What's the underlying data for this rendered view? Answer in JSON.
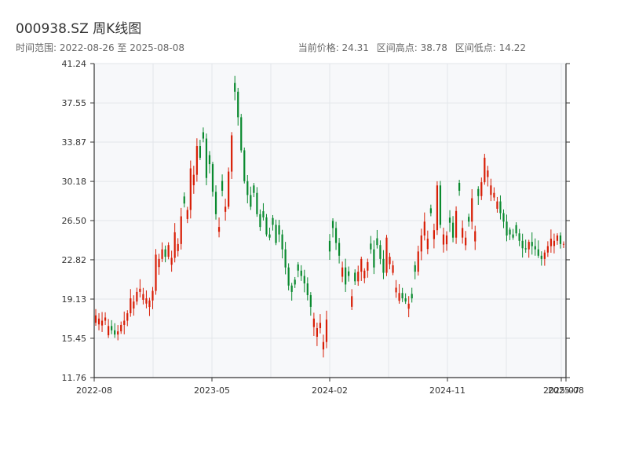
{
  "header": {
    "title": "000938.SZ 周K线图",
    "subtitle": "时间范围: 2022-08-26 至 2025-08-08",
    "current_price": "当前价格: 24.31",
    "high": "区间高点: 38.78",
    "low": "区间低点: 14.22"
  },
  "colors": {
    "up": "#d81e06",
    "down": "#0a8a2f",
    "plot_bg": "#f7f8fa",
    "grid": "#e3e6ea"
  },
  "chart_data": {
    "type": "candlestick",
    "title": "000938.SZ 周K线图",
    "ylim": [
      11.76,
      41.24
    ],
    "y_ticks": [
      11.76,
      15.45,
      19.13,
      22.82,
      26.5,
      30.18,
      33.87,
      37.55,
      41.24
    ],
    "x_ticks": [
      "2022-08",
      "2023-05",
      "2024-02",
      "2024-11",
      "2025-07",
      "2025-08"
    ],
    "series": [
      {
        "close": [
          17.6,
          17.3,
          17.1,
          17.4,
          16.6,
          16.2,
          15.8,
          16.1,
          16.7,
          17.1,
          17.8,
          19.2,
          18.9,
          19.8,
          20.1,
          19.6,
          19.2,
          19.0,
          19.9,
          23.3,
          22.9,
          23.8,
          23.1,
          24.2,
          23.0,
          25.4,
          24.3,
          26.9,
          28.1,
          27.5,
          31.4,
          30.8,
          33.5,
          32.4,
          34.2,
          30.5,
          31.8,
          29.2,
          27.1,
          25.9,
          29.3,
          27.8,
          31.1,
          34.5,
          38.6,
          36.2,
          33.1,
          30.2,
          28.9,
          27.8,
          29.1,
          27.1,
          25.9,
          26.8,
          25.2,
          24.9,
          26.1,
          24.4,
          25.2,
          23.8,
          22.1,
          20.4,
          19.8,
          20.5,
          21.8,
          21.3,
          20.6,
          19.5,
          18.4,
          17.3,
          16.4,
          16.9,
          15.1,
          17.2,
          23.6,
          25.8,
          24.4,
          23.2,
          22.1,
          20.5,
          21.3,
          19.4,
          20.8,
          21.7,
          22.9,
          21.8,
          22.6,
          23.8,
          22.1,
          24.2,
          22.9,
          21.6,
          24.9,
          23.1,
          22.3,
          20.2,
          19.7,
          19.2,
          18.9,
          18.7,
          19.2,
          21.7,
          23.6,
          25.1,
          26.4,
          24.8,
          27.2,
          25.6,
          29.8,
          26.1,
          25.2,
          25.1,
          26.3,
          24.9,
          27.4,
          29.3,
          25.8,
          24.9,
          26.4,
          28.6,
          25.5,
          28.8,
          30.1,
          32.4,
          31.2,
          29.8,
          29.1,
          28.3,
          27.2,
          26.4,
          25.1,
          25.2,
          24.9,
          25.3,
          24.6,
          23.9,
          23.8,
          24.5,
          24.1,
          23.8,
          23.2,
          22.9,
          23.5,
          24.1,
          24.8,
          24.6,
          25.1,
          24.3,
          24.31
        ],
        "direction": "uuuuudduuuuuuuuuuuuuuuduuuuuduuuudddddduduuuddddddddddddddddddddddddduuuuuddddudduduuuuddddduuuuuddudduuuuduuduudduduuduuduuuuuudddddddddudddduuuuudud"
      }
    ]
  }
}
